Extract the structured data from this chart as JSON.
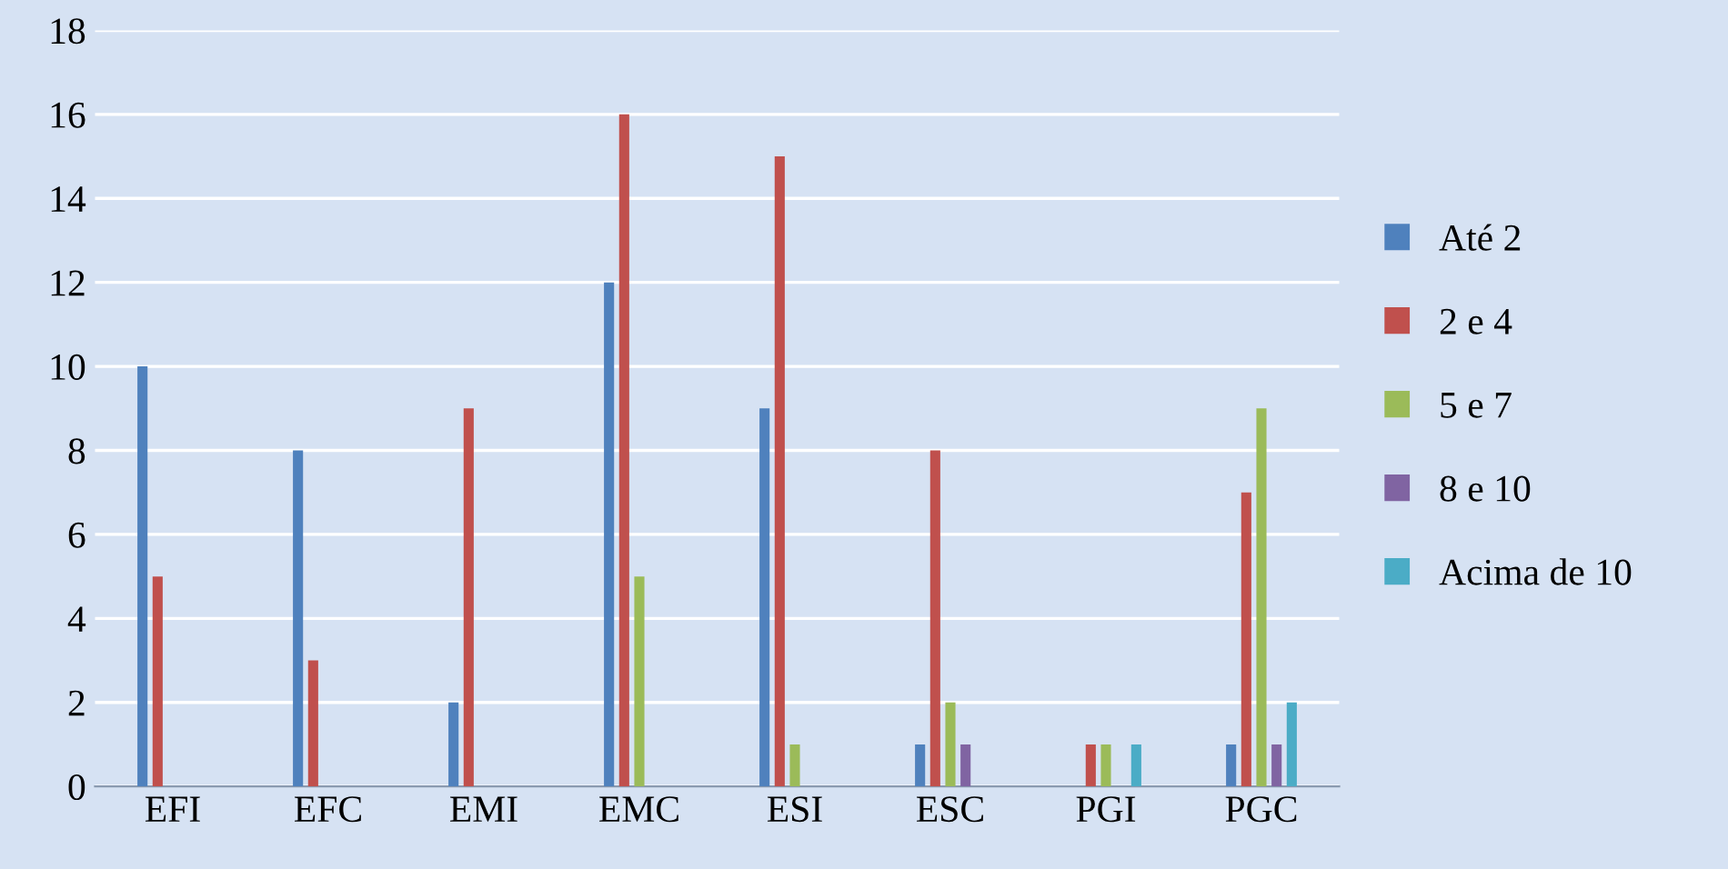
{
  "chart_data": {
    "type": "bar",
    "categories": [
      "EFI",
      "EFC",
      "EMI",
      "EMC",
      "ESI",
      "ESC",
      "PGI",
      "PGC"
    ],
    "series": [
      {
        "name": "Até 2",
        "color": "#4f81bd",
        "values": [
          10,
          8,
          2,
          12,
          9,
          1,
          0,
          1
        ]
      },
      {
        "name": "2 e 4",
        "color": "#c0504d",
        "values": [
          5,
          3,
          9,
          16,
          15,
          8,
          1,
          7
        ]
      },
      {
        "name": "5 e 7",
        "color": "#9bbb59",
        "values": [
          0,
          0,
          0,
          5,
          1,
          2,
          1,
          9
        ]
      },
      {
        "name": "8 e 10",
        "color": "#8064a2",
        "values": [
          0,
          0,
          0,
          0,
          0,
          1,
          0,
          1
        ]
      },
      {
        "name": "Acima de 10",
        "color": "#4bacc6",
        "values": [
          0,
          0,
          0,
          0,
          0,
          0,
          1,
          2
        ]
      }
    ],
    "ylim": [
      0,
      18
    ],
    "yticks": [
      0,
      2,
      4,
      6,
      8,
      10,
      12,
      14,
      16,
      18
    ],
    "grid": "y",
    "legend": "right"
  }
}
